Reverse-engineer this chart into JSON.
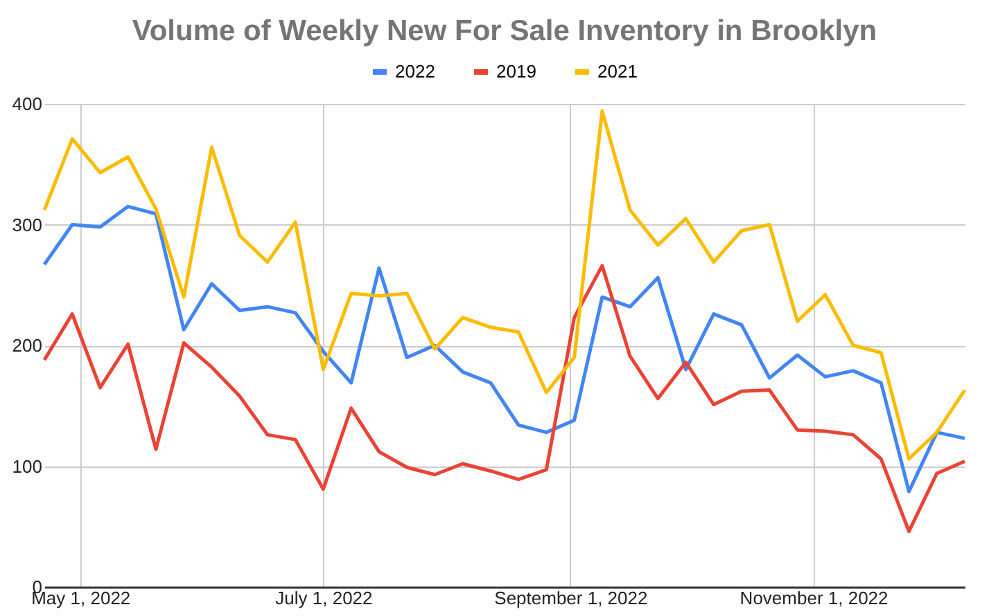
{
  "chart_data": {
    "type": "line",
    "title": "Volume of Weekly New For Sale Inventory in Brooklyn",
    "x": [
      "2022-04-22",
      "2022-04-29",
      "2022-05-06",
      "2022-05-13",
      "2022-05-20",
      "2022-05-27",
      "2022-06-03",
      "2022-06-10",
      "2022-06-17",
      "2022-06-24",
      "2022-07-01",
      "2022-07-08",
      "2022-07-15",
      "2022-07-22",
      "2022-07-29",
      "2022-08-05",
      "2022-08-12",
      "2022-08-19",
      "2022-08-26",
      "2022-09-02",
      "2022-09-09",
      "2022-09-16",
      "2022-09-23",
      "2022-09-30",
      "2022-10-07",
      "2022-10-14",
      "2022-10-21",
      "2022-10-28",
      "2022-11-04",
      "2022-11-11",
      "2022-11-18",
      "2022-11-25",
      "2022-12-02",
      "2022-12-09"
    ],
    "series": [
      {
        "name": "2022",
        "color": "#4285f4",
        "values": [
          267,
          300,
          298,
          315,
          309,
          213,
          251,
          229,
          232,
          227,
          195,
          169,
          264,
          190,
          200,
          178,
          169,
          134,
          128,
          138,
          240,
          232,
          256,
          180,
          226,
          217,
          173,
          192,
          174,
          179,
          169,
          79,
          128,
          123
        ]
      },
      {
        "name": "2019",
        "color": "#ea4335",
        "values": [
          188,
          226,
          165,
          201,
          114,
          202,
          182,
          158,
          126,
          122,
          81,
          148,
          112,
          99,
          93,
          102,
          96,
          89,
          97,
          223,
          266,
          191,
          156,
          186,
          151,
          162,
          163,
          130,
          129,
          126,
          106,
          46,
          94,
          104
        ]
      },
      {
        "name": "2021",
        "color": "#fbbc04",
        "values": [
          312,
          371,
          343,
          356,
          313,
          240,
          364,
          291,
          269,
          302,
          180,
          243,
          241,
          243,
          197,
          223,
          215,
          211,
          161,
          190,
          394,
          312,
          283,
          305,
          269,
          295,
          300,
          220,
          242,
          200,
          194,
          106,
          128,
          163
        ]
      }
    ],
    "xlim": [
      "2022-04-22",
      "2022-12-09"
    ],
    "xticks": [
      {
        "value": "2022-05-01",
        "label": "May 1, 2022"
      },
      {
        "value": "2022-07-01",
        "label": "July 1, 2022"
      },
      {
        "value": "2022-09-01",
        "label": "September 1, 2022"
      },
      {
        "value": "2022-11-01",
        "label": "November 1, 2022"
      }
    ],
    "ylim": [
      0,
      400
    ],
    "yticks": [
      0,
      100,
      200,
      300,
      400
    ],
    "grid": true,
    "legend": "top"
  }
}
